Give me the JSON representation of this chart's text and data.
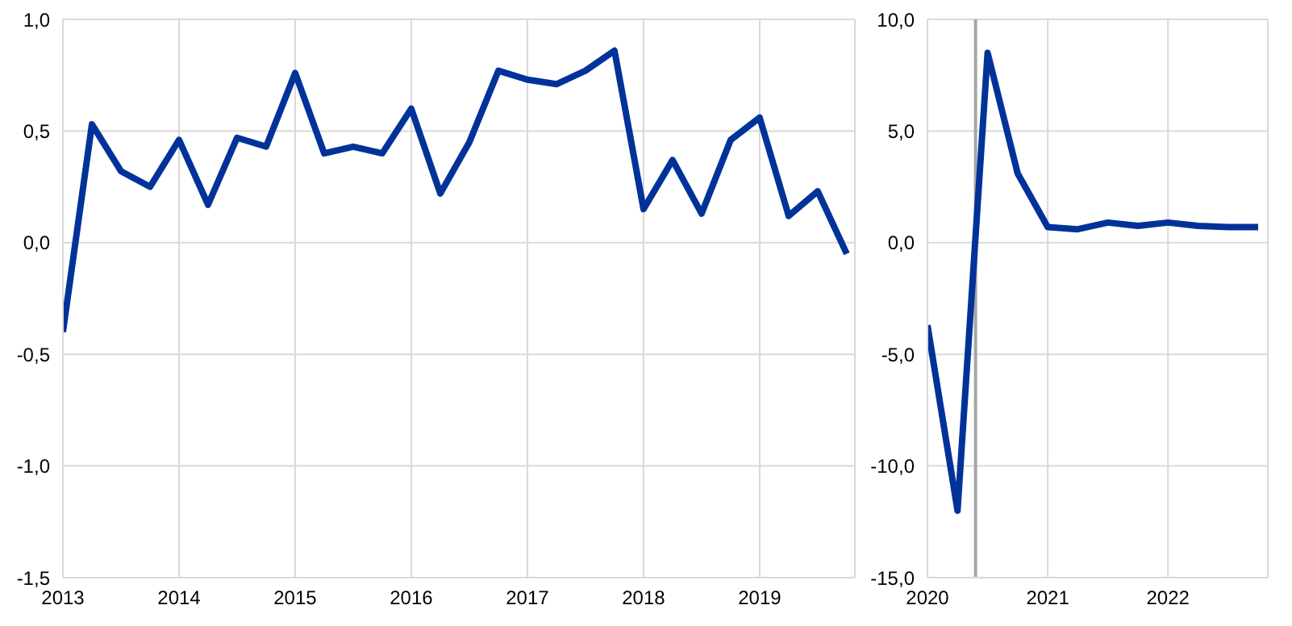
{
  "chart_data": [
    {
      "type": "line",
      "x": [
        2013,
        2013.25,
        2013.5,
        2013.75,
        2014,
        2014.25,
        2014.5,
        2014.75,
        2015,
        2015.25,
        2015.5,
        2015.75,
        2016,
        2016.25,
        2016.5,
        2016.75,
        2017,
        2017.25,
        2017.5,
        2017.75,
        2018,
        2018.25,
        2018.5,
        2018.75,
        2019,
        2019.25,
        2019.5,
        2019.75
      ],
      "series": [
        {
          "color": "#003299",
          "values": [
            -0.4,
            0.53,
            0.32,
            0.25,
            0.46,
            0.17,
            0.47,
            0.43,
            0.76,
            0.4,
            0.43,
            0.4,
            0.6,
            0.22,
            0.45,
            0.77,
            0.73,
            0.71,
            0.77,
            0.86,
            0.15,
            0.37,
            0.13,
            0.46,
            0.56,
            0.12,
            0.23,
            -0.05
          ]
        }
      ],
      "xlim": [
        2013,
        2019.82
      ],
      "xticks": [
        2013,
        2014,
        2015,
        2016,
        2017,
        2018,
        2019
      ],
      "ylim": [
        -1.5,
        1.0
      ],
      "yticks": [
        {
          "value": -1.5,
          "label": "-1,5"
        },
        {
          "value": -1.0,
          "label": "-1,0"
        },
        {
          "value": -0.5,
          "label": "-0,5"
        },
        {
          "value": 0,
          "label": "0,0"
        },
        {
          "value": 0.5,
          "label": "0,5"
        },
        {
          "value": 1.0,
          "label": "1,0"
        }
      ],
      "grid": true,
      "legend": false,
      "marker": "none",
      "line_style": "solid"
    },
    {
      "type": "line",
      "x": [
        2020,
        2020.25,
        2020.5,
        2020.75,
        2021,
        2021.25,
        2021.5,
        2021.75,
        2022,
        2022.25,
        2022.5,
        2022.75
      ],
      "series": [
        {
          "color": "#003299",
          "values": [
            -3.7,
            -12.0,
            8.5,
            3.1,
            0.7,
            0.6,
            0.9,
            0.75,
            0.9,
            0.75,
            0.7,
            0.7
          ]
        }
      ],
      "xlim": [
        2020,
        2022.83
      ],
      "xticks": [
        2020,
        2021,
        2022
      ],
      "ylim": [
        -15,
        10
      ],
      "yticks": [
        {
          "value": -15,
          "label": "-15,0"
        },
        {
          "value": -10,
          "label": "-10,0"
        },
        {
          "value": -5,
          "label": "-5,0"
        },
        {
          "value": 0,
          "label": "0,0"
        },
        {
          "value": 5,
          "label": "5,0"
        },
        {
          "value": 10,
          "label": "10,0"
        }
      ],
      "ref_lines": [
        {
          "axis": "x",
          "value": 2020.4,
          "label": null,
          "color": "#a6a6a6"
        }
      ],
      "grid": true,
      "legend": false,
      "marker": "none",
      "line_style": "solid"
    }
  ]
}
